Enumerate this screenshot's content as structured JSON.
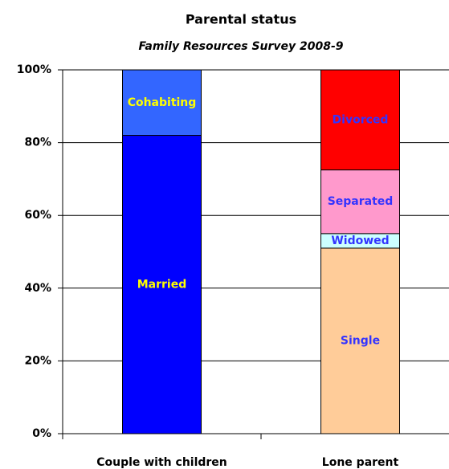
{
  "chart_data": {
    "type": "stacked_bar",
    "title": "Parental status",
    "subtitle": "Family Resources Survey 2008-9",
    "categories": [
      "Couple with children",
      "Lone parent"
    ],
    "series": [
      {
        "name": "Married",
        "color": "#0000ff",
        "label_color": "#ffff00",
        "values": [
          82,
          null
        ]
      },
      {
        "name": "Cohabiting",
        "color": "#3366ff",
        "label_color": "#ffff00",
        "values": [
          18,
          null
        ]
      },
      {
        "name": "Single",
        "color": "#ffcc99",
        "label_color": "#3333ff",
        "values": [
          null,
          51
        ]
      },
      {
        "name": "Widowed",
        "color": "#ccffff",
        "label_color": "#3333ff",
        "values": [
          null,
          4
        ]
      },
      {
        "name": "Separated",
        "color": "#ff99cc",
        "label_color": "#3333ff",
        "values": [
          null,
          17.5
        ]
      },
      {
        "name": "Divorced",
        "color": "#ff0000",
        "label_color": "#3333ff",
        "values": [
          null,
          27.5
        ]
      }
    ],
    "ylim": [
      0,
      100
    ],
    "yticks": [
      {
        "value": 0,
        "label": "0%"
      },
      {
        "value": 20,
        "label": "20%"
      },
      {
        "value": 40,
        "label": "40%"
      },
      {
        "value": 60,
        "label": "60%"
      },
      {
        "value": 80,
        "label": "80%"
      },
      {
        "value": 100,
        "label": "100%"
      }
    ],
    "grid": true
  }
}
